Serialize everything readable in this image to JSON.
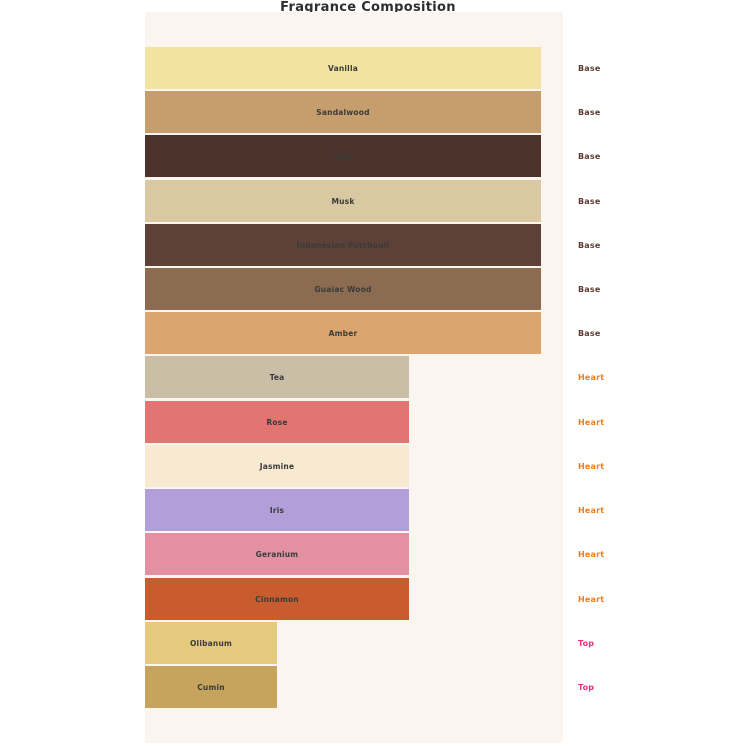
{
  "title": "Fragrance Composition",
  "chart_data": {
    "type": "bar",
    "orientation": "horizontal",
    "title": "Fragrance Composition",
    "xlabel": "",
    "ylabel": "",
    "xlim": [
      0,
      3.17
    ],
    "grid": false,
    "legend_position": "none",
    "plot_background": "#faf5ee",
    "bar_label_color": "#3a3a3a",
    "group_label_colors": {
      "Base": "#5d3a33",
      "Heart": "#f07d1e",
      "Top": "#e0337c"
    },
    "bars": [
      {
        "label": "Vanilla",
        "group": "Base",
        "value": 3,
        "color": "#f2e3a3"
      },
      {
        "label": "Sandalwood",
        "group": "Base",
        "value": 3,
        "color": "#c69d6c"
      },
      {
        "label": "Oud",
        "group": "Base",
        "value": 3,
        "color": "#4b332c"
      },
      {
        "label": "Musk",
        "group": "Base",
        "value": 3,
        "color": "#d9c9a3"
      },
      {
        "label": "Indonesian Patchouli",
        "group": "Base",
        "value": 3,
        "color": "#5c4138"
      },
      {
        "label": "Guaiac Wood",
        "group": "Base",
        "value": 3,
        "color": "#8b6c50"
      },
      {
        "label": "Amber",
        "group": "Base",
        "value": 3,
        "color": "#daa56f"
      },
      {
        "label": "Tea",
        "group": "Heart",
        "value": 2,
        "color": "#cabfa6"
      },
      {
        "label": "Rose",
        "group": "Heart",
        "value": 2,
        "color": "#e47471"
      },
      {
        "label": "Jasmine",
        "group": "Heart",
        "value": 2,
        "color": "#f8e9d1"
      },
      {
        "label": "Iris",
        "group": "Heart",
        "value": 2,
        "color": "#b29fd9"
      },
      {
        "label": "Geranium",
        "group": "Heart",
        "value": 2,
        "color": "#e390a2"
      },
      {
        "label": "Cinnamon",
        "group": "Heart",
        "value": 2,
        "color": "#c85c2e"
      },
      {
        "label": "Olibanum",
        "group": "Top",
        "value": 1,
        "color": "#e5c97c"
      },
      {
        "label": "Cumin",
        "group": "Top",
        "value": 1,
        "color": "#c7a45e"
      }
    ]
  }
}
